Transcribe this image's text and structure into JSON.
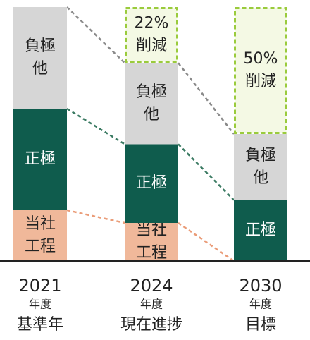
{
  "chart_data": {
    "type": "bar",
    "stacked": true,
    "categories": [
      {
        "year": "2021",
        "sub": "年度",
        "desc": "基準年"
      },
      {
        "year": "2024",
        "sub": "年度",
        "desc": "現在進捗"
      },
      {
        "year": "2030",
        "sub": "年度",
        "desc": "目標"
      }
    ],
    "total_index": [
      100,
      78,
      50
    ],
    "series": [
      {
        "name": "当社工程",
        "values": [
          20,
          15,
          0
        ],
        "color": "#f0b89a",
        "text_color": "#222222"
      },
      {
        "name": "正極",
        "values": [
          40,
          31,
          24
        ],
        "color": "#0f5c4d",
        "text_color": "#ffffff"
      },
      {
        "name": "負極他",
        "values": [
          40,
          32,
          26
        ],
        "color": "#d6d6d6",
        "text_color": "#222222"
      }
    ],
    "reductions": [
      {
        "category_index": 1,
        "value": 22,
        "label": "22%\n削減"
      },
      {
        "category_index": 2,
        "value": 50,
        "label": "50%\n削減"
      }
    ],
    "reduction_style": {
      "border": "#9acb3c",
      "fill": "#f4f9e4",
      "text": "#222222"
    },
    "connector_colors": [
      "#ea9c78",
      "#3a7a62",
      "#8a8a8a"
    ],
    "axis_color": "#222222",
    "ylim": [
      0,
      100
    ]
  }
}
